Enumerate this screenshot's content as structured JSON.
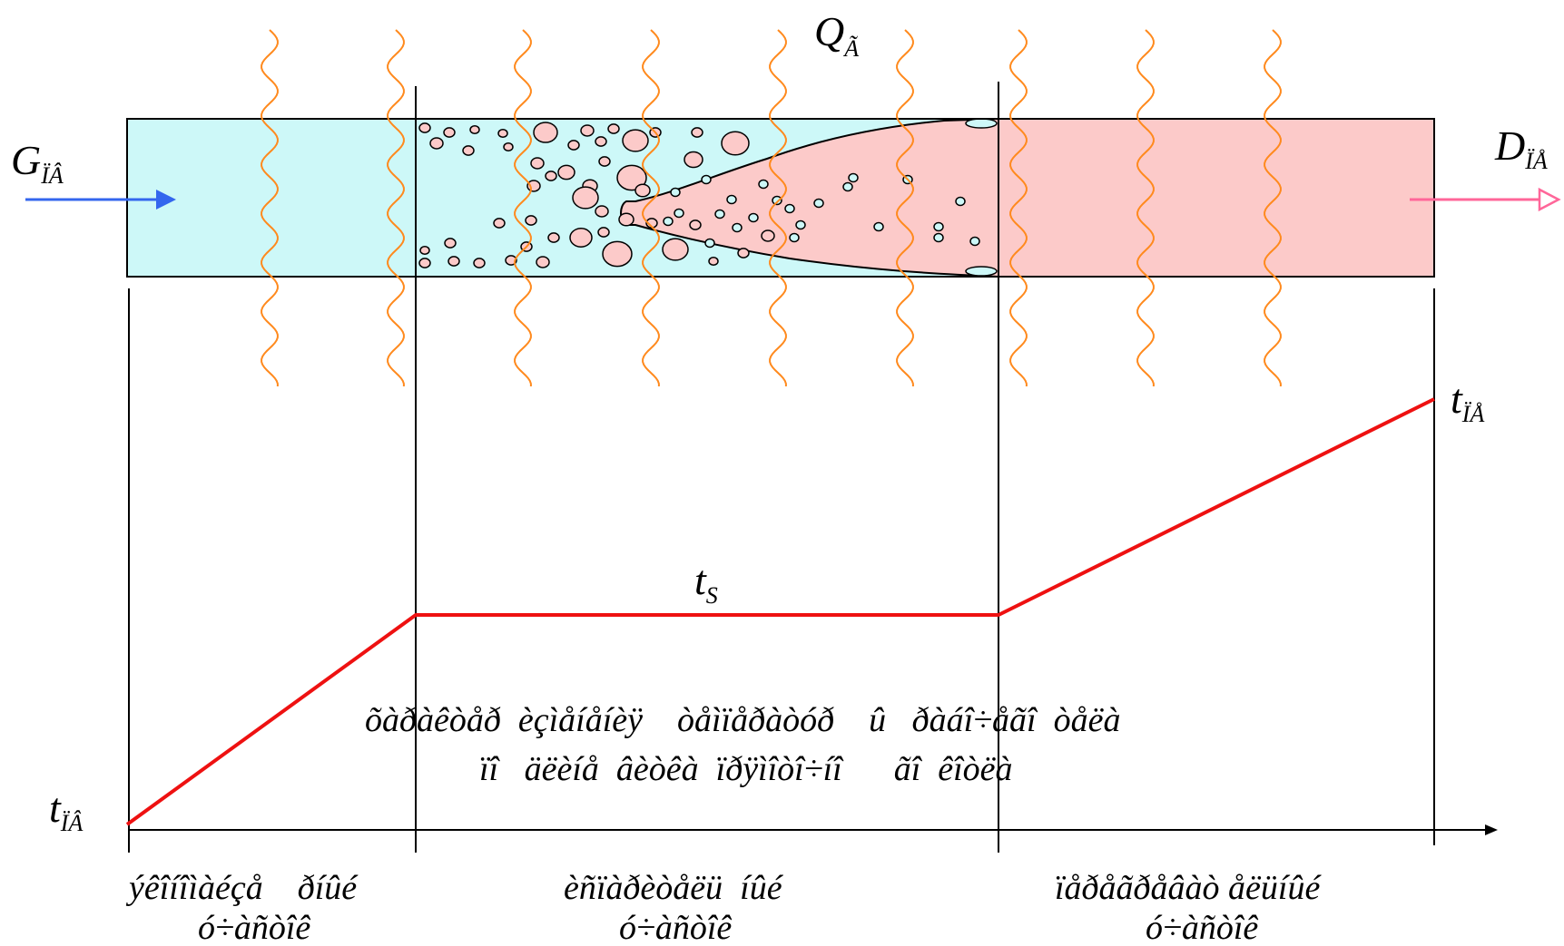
{
  "heat_label": {
    "main": "Q",
    "sub": "Ã"
  },
  "inlet_flow": {
    "main": "G",
    "sub": "ÏÂ"
  },
  "outlet_flow": {
    "main": "D",
    "sub": "ÏÅ"
  },
  "temperatures": {
    "inlet": {
      "main": "t",
      "sub": "ÏÂ"
    },
    "saturation": {
      "main": "t",
      "sub": "S"
    },
    "outlet": {
      "main": "t",
      "sub": "ÏÅ"
    }
  },
  "middle_caption": {
    "line1": "õàðàêòåð  èçìåíåíèÿ    òåìïåðàòóð    û   ðàáî÷åãî  òåëà",
    "line2": "ïî   äëèíå  âèòêà  ïðÿìîòî÷íî      ãî  êîòëà"
  },
  "sections": [
    {
      "line1": "ýêîíîìàéçå    ðíûé",
      "line2": "ó÷àñòîê"
    },
    {
      "line1": "èñïàðèòåëü  íûé",
      "line2": "ó÷àñòîê"
    },
    {
      "line1": "ïåðåãðåâàò åëüíûé",
      "line2": "ó÷àñòîê"
    }
  ],
  "colors": {
    "water": "#cdf8f8",
    "steam": "#fccac9",
    "heat_waves": "#ff8a1e",
    "temperature_line": "#ee1111",
    "inlet_arrow": "#3366ee",
    "outlet_arrow": "#ff6699"
  },
  "icons": {
    "inlet_arrow": "arrow-right-icon",
    "outlet_arrow": "arrow-right-hollow-icon",
    "heat_wave": "wavy-line-icon"
  }
}
